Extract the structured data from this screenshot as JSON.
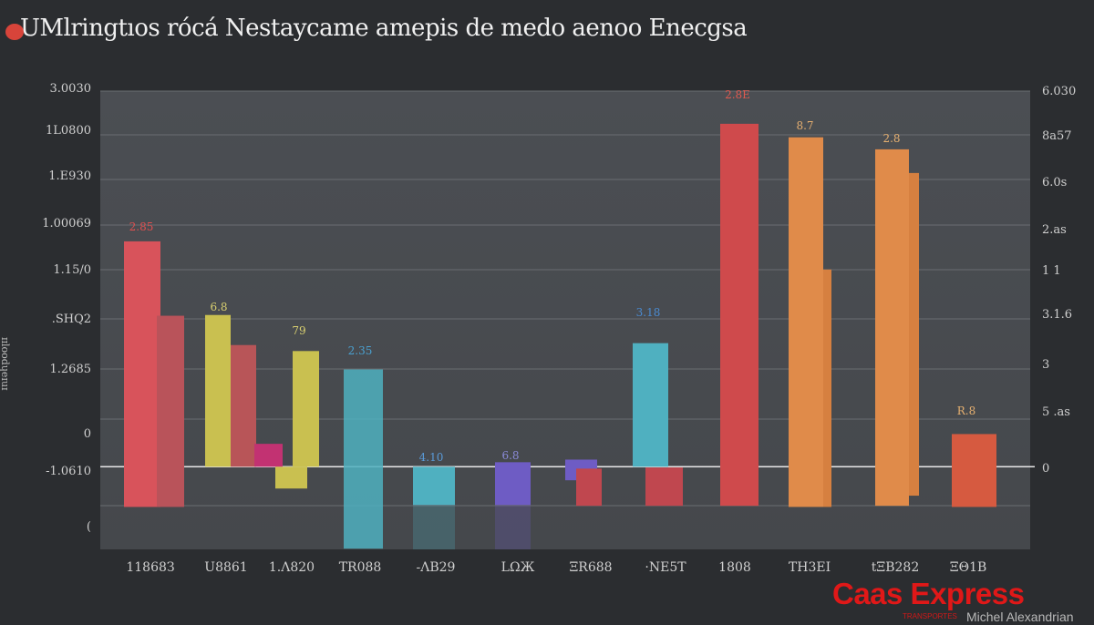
{
  "chart_data": {
    "type": "bar",
    "title": "UMlringtıos rócá Nestaycame amepis de medo aenoo Enecgsa",
    "ylabel": "ɪɪloodɥeɪuɪ",
    "xlabel": "",
    "ylim": [
      -22,
      100
    ],
    "grid": true,
    "legend": "none",
    "left_tick_labels": [
      "3.0030",
      "1L0800",
      "1.E930",
      "1.00069",
      "1.15/0",
      ".SHQ2",
      "1.2685",
      "0",
      "-1.0610",
      "("
    ],
    "right_tick_labels": [
      "6.030",
      "8a57",
      "6.0s",
      "2.as",
      "1 1",
      "3.1.6",
      "3",
      "5 .as",
      "0"
    ],
    "x_tick_labels": [
      "11868З",
      "U8861",
      "1.Λ820",
      "TR088",
      "-ΛΒ29",
      "LΩЖ",
      "ΞR688",
      "·ΝΕ5Τ",
      "1808",
      "ΤΗ3ΕΙ",
      "tΞΒ282",
      "ΞΘ1Β"
    ],
    "bars": [
      {
        "low": -10.7,
        "high": 60.0,
        "color": "#d8535b",
        "label": "2.85",
        "label_color": "#e05050"
      },
      {
        "low": -10.7,
        "high": 40.2,
        "color": "#b9535a"
      },
      {
        "low": 0,
        "high": 40.4,
        "color": "#c9c050",
        "label": "6.8",
        "label_color": "#d8cf70"
      },
      {
        "low": 0,
        "high": 32.4,
        "color": "#b85558"
      },
      {
        "low": 0,
        "high": 6.1,
        "color": "#c23272"
      },
      {
        "low": -5.8,
        "high": 0,
        "color": "#c9c050"
      },
      {
        "low": 0,
        "high": 30.8,
        "color": "#c9c050",
        "label": "79",
        "label_color": "#d8cf70"
      },
      {
        "low": -21.8,
        "high": 25.9,
        "color": "#4fb0c0",
        "label": "2.35",
        "label_color": "#4aa0d0"
      },
      {
        "low": -10.2,
        "high": 0,
        "color": "#4fb0c0",
        "label": "4.10",
        "label_color": "#5a9ad8"
      },
      {
        "low": -10.2,
        "high": 1.2,
        "color": "#6e5cc4",
        "label": "6.8",
        "label_color": "#8a8ad8"
      },
      {
        "low": -3.6,
        "high": 1.9,
        "color": "#6e5cc4"
      },
      {
        "low": -10.4,
        "high": -0.5,
        "color": "#c0474f"
      },
      {
        "low": 0,
        "high": 32.9,
        "color": "#4fb0c0",
        "label": "3.18",
        "label_color": "#4a8ad0"
      },
      {
        "low": -10.4,
        "high": -0.2,
        "color": "#c0474f"
      },
      {
        "low": -10.4,
        "high": 91.3,
        "color": "#cf4a4c",
        "label": "2.8E",
        "label_color": "#e05a50"
      },
      {
        "low": -10.7,
        "high": 87.7,
        "color": "#e08b4a",
        "label": "8.7",
        "label_color": "#e6b070"
      },
      {
        "low": -10.7,
        "high": 52.5,
        "color": "#d68040"
      },
      {
        "low": -10.4,
        "high": 84.5,
        "color": "#e08b4a",
        "label": "2.8",
        "label_color": "#e6b070"
      },
      {
        "low": -7.7,
        "high": 78.2,
        "color": "#d68040"
      },
      {
        "low": -10.7,
        "high": 8.7,
        "color": "#d65a40",
        "label": "R.8",
        "label_color": "#e6b070"
      }
    ]
  },
  "watermark": {
    "brand": "Caas Express",
    "sub": "TRANSPORTES",
    "signature": "Michel Alexandrian"
  },
  "colors": {
    "background": "#2b2d30",
    "plot": "#4a4d52",
    "brand": "#e01818"
  }
}
